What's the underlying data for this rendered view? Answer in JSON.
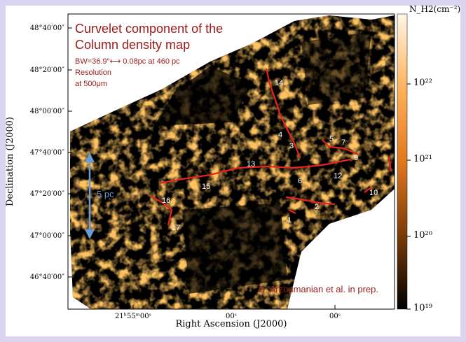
{
  "figure": {
    "title_lines": [
      "Curvelet component of the",
      "Column density map"
    ],
    "beam_note": "BW=36.9″⟷ 0.08pc at 460 pc",
    "resolution_lines": [
      "Resolution",
      "at 500μm"
    ],
    "scale_bar": "5 pc",
    "credit": "D. Arzoumanian et al. in prep.",
    "x_axis_label": "Right Ascension (J2000)",
    "y_axis_label": "Declination (J2000)",
    "x_tick_labels": [
      "21ʰ55ᵐ00ˢ",
      "00ˢ",
      "00ˢ"
    ],
    "y_tick_labels": [
      "48°40′00″",
      "48°20′00″",
      "48°00′00″",
      "47°40′00″",
      "47°20′00″",
      "47°00′00″",
      "46°40′00″"
    ],
    "colorbar_title": "N_H2(cm⁻²)",
    "colorbar_labels": [
      "10²²",
      "10²¹",
      "10²⁰",
      "10¹⁹"
    ],
    "filament_labels": [
      "14",
      "4",
      "3",
      "5",
      "7",
      "9",
      "13",
      "6",
      "12",
      "15",
      "16",
      "10",
      "2",
      "1",
      "17"
    ]
  }
}
